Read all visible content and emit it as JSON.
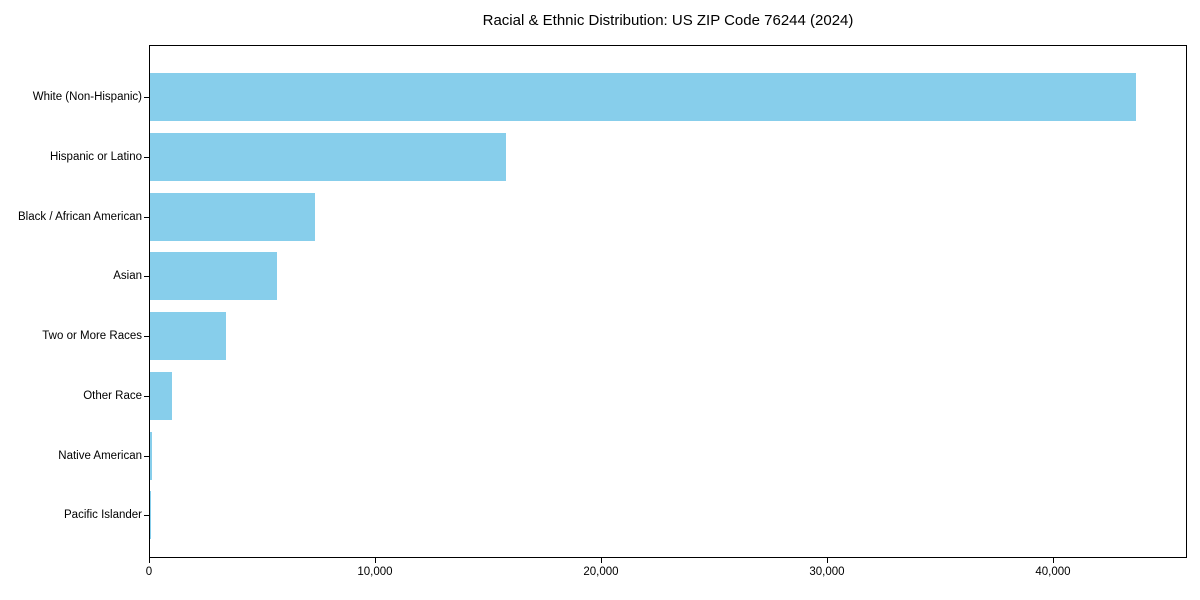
{
  "chart_data": {
    "type": "bar",
    "orientation": "horizontal",
    "title": "Racial & Ethnic Distribution: US ZIP Code 76244 (2024)",
    "categories": [
      "White (Non-Hispanic)",
      "Hispanic or Latino",
      "Black / African American",
      "Asian",
      "Two or More Races",
      "Other Race",
      "Native American",
      "Pacific Islander"
    ],
    "values": [
      43650,
      15750,
      7300,
      5620,
      3360,
      970,
      70,
      25
    ],
    "xlabel": "",
    "ylabel": "",
    "xlim": [
      0,
      45885
    ],
    "x_ticks": [
      0,
      10000,
      20000,
      30000,
      40000
    ],
    "x_tick_labels": [
      "0",
      "10,000",
      "20,000",
      "30,000",
      "40,000"
    ],
    "bar_color": "#87CEEB",
    "background_color": "#ffffff",
    "spine_color": "#000000",
    "grid": false,
    "legend": null
  }
}
